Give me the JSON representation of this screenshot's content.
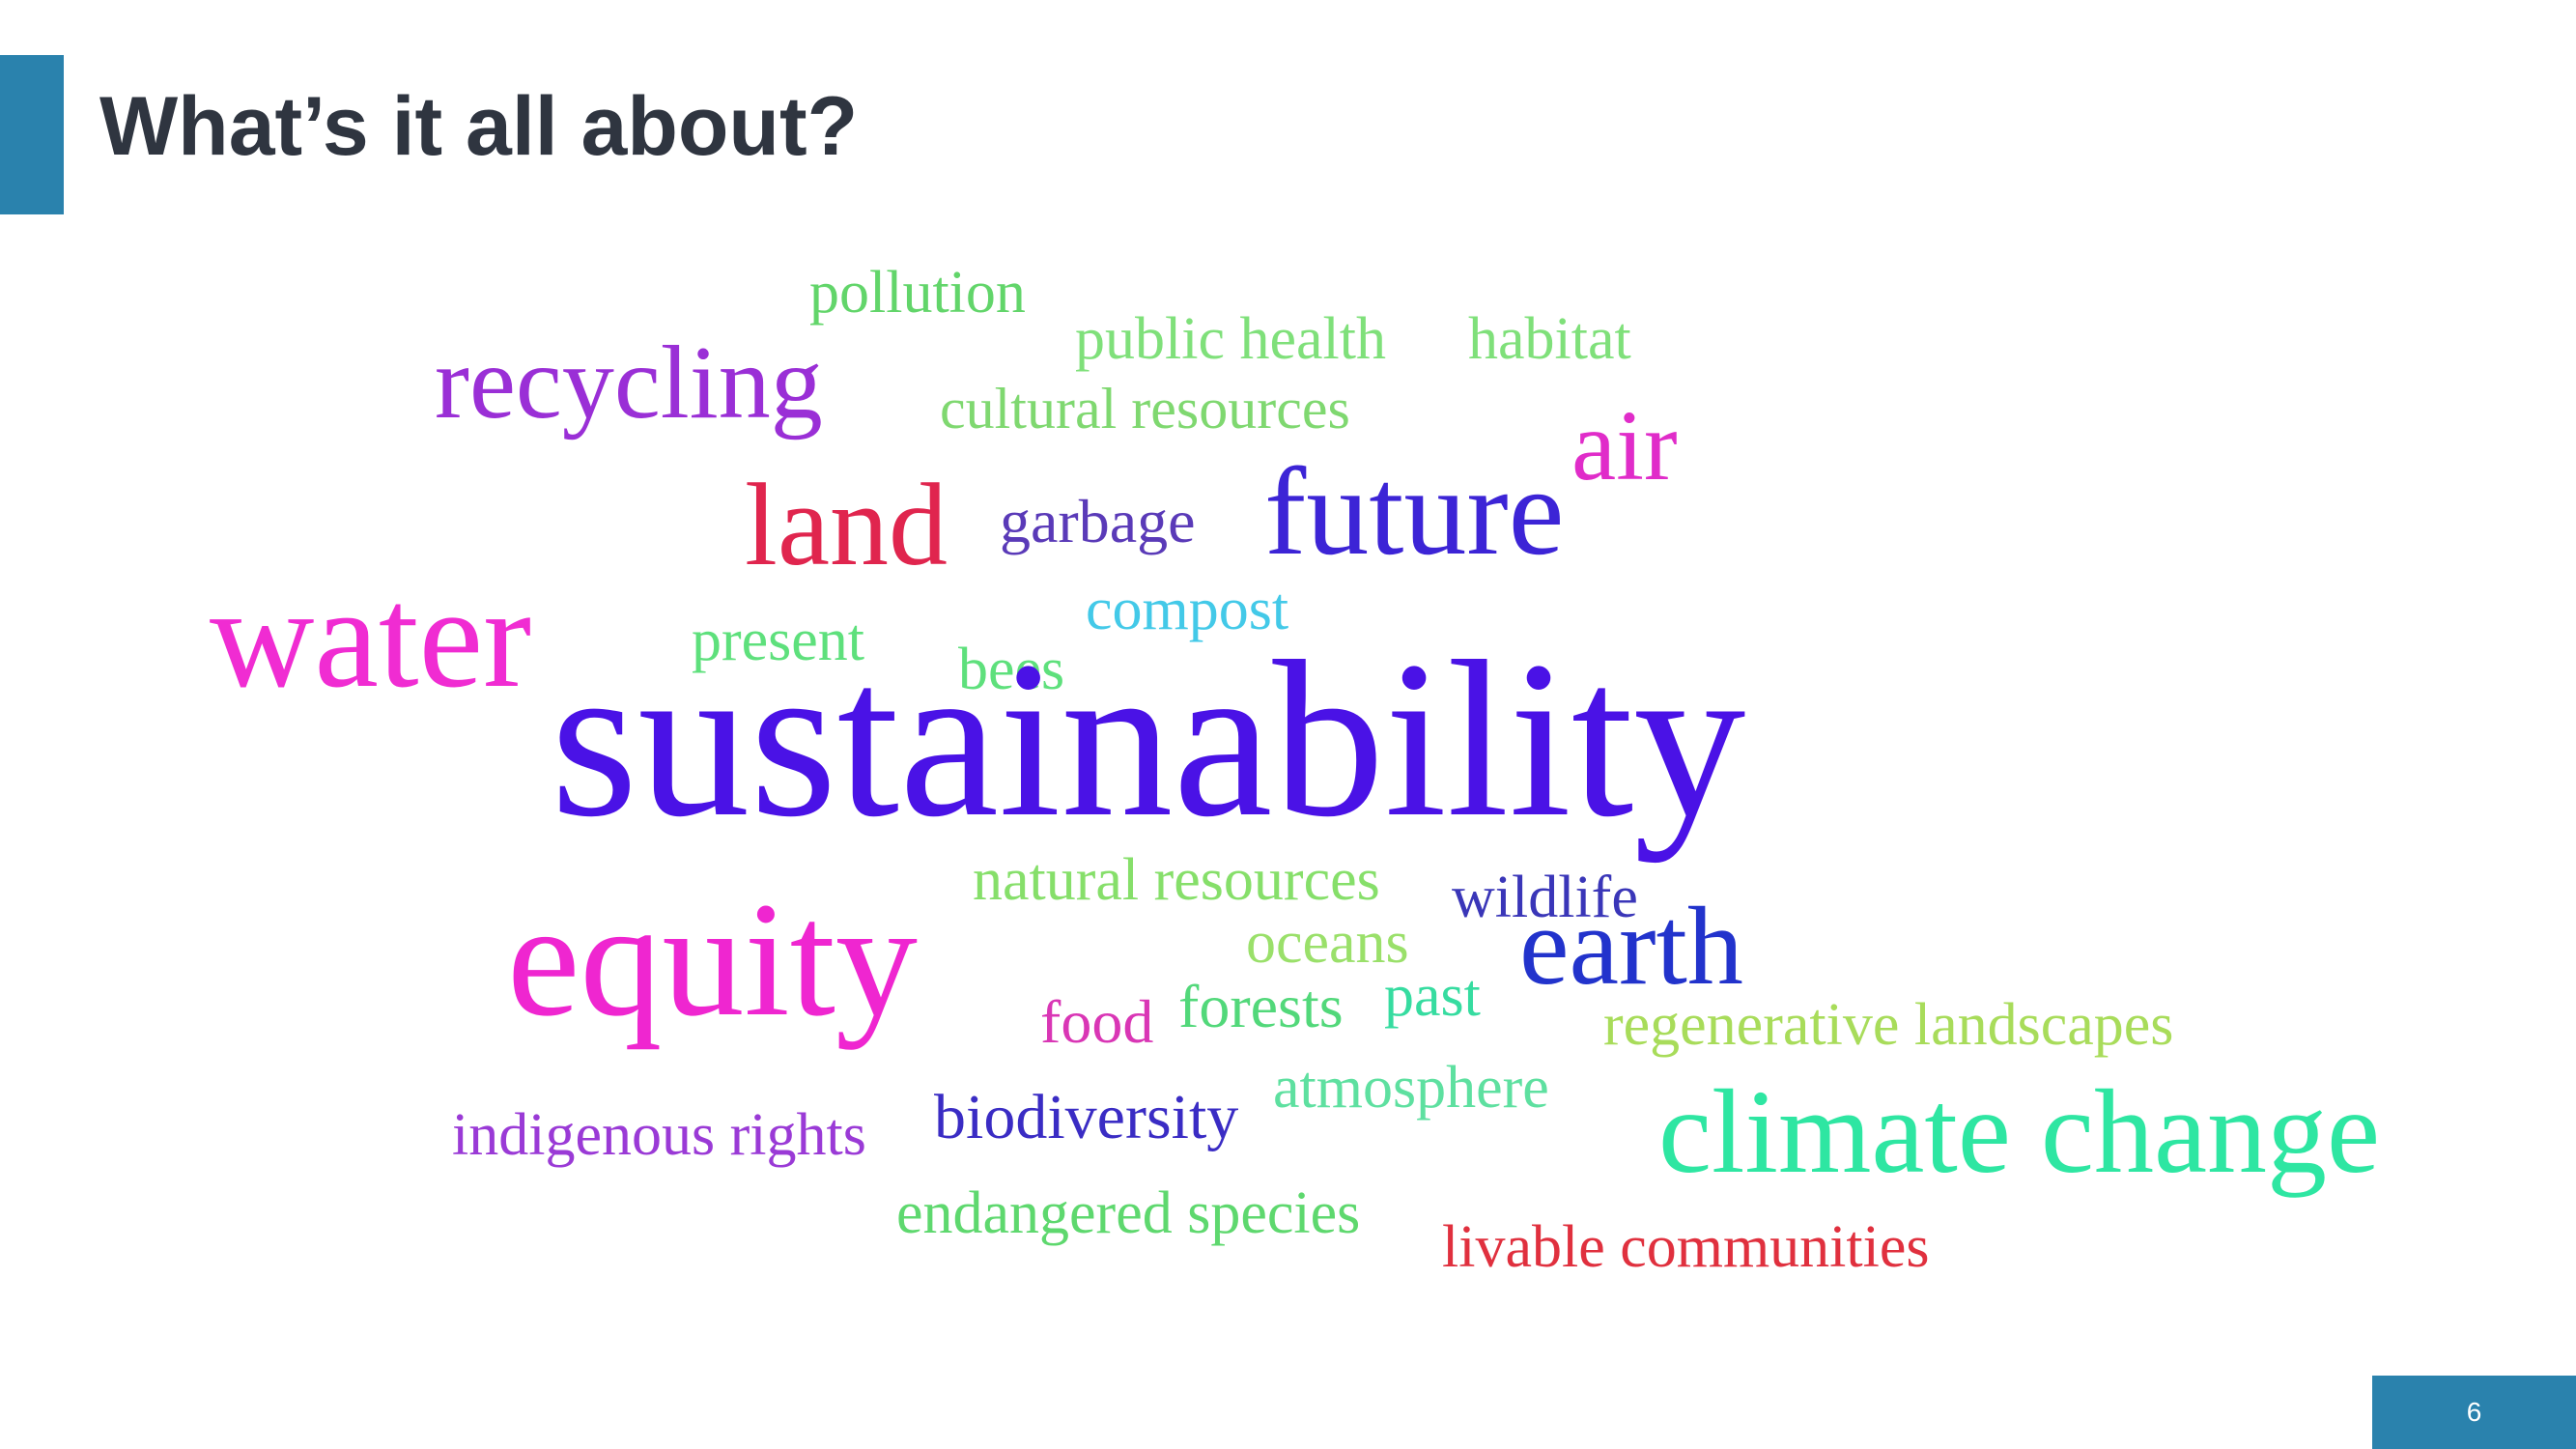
{
  "slide": {
    "title": "What’s it all about?",
    "page_number": "6"
  },
  "colors": {
    "accent": "#2a82ad",
    "title_text": "#2f3540"
  },
  "word_cloud": {
    "words": [
      {
        "text": "pollution",
        "color": "#62d56a"
      },
      {
        "text": "public health",
        "color": "#7fe07a"
      },
      {
        "text": "habitat",
        "color": "#7fe07a"
      },
      {
        "text": "recycling",
        "color": "#9a2fd6"
      },
      {
        "text": "cultural resources",
        "color": "#7fd870"
      },
      {
        "text": "air",
        "color": "#e02cc9"
      },
      {
        "text": "land",
        "color": "#e0254e"
      },
      {
        "text": "garbage",
        "color": "#5a3ab8"
      },
      {
        "text": "future",
        "color": "#3c24d6"
      },
      {
        "text": "water",
        "color": "#f02cd2"
      },
      {
        "text": "present",
        "color": "#5ee07c"
      },
      {
        "text": "compost",
        "color": "#43c9e8"
      },
      {
        "text": "bees",
        "color": "#5ee07c"
      },
      {
        "text": "sustainability",
        "color": "#4a12e6"
      },
      {
        "text": "natural resources",
        "color": "#86df6a"
      },
      {
        "text": "wildlife",
        "color": "#3a36b8"
      },
      {
        "text": "equity",
        "color": "#ef26d0"
      },
      {
        "text": "oceans",
        "color": "#9ae06a"
      },
      {
        "text": "earth",
        "color": "#2233cc"
      },
      {
        "text": "food",
        "color": "#d936b5"
      },
      {
        "text": "forests",
        "color": "#52d87a"
      },
      {
        "text": "past",
        "color": "#36dca0"
      },
      {
        "text": "regenerative landscapes",
        "color": "#a8dc5a"
      },
      {
        "text": "indigenous rights",
        "color": "#9a3ad6"
      },
      {
        "text": "biodiversity",
        "color": "#3a2cc4"
      },
      {
        "text": "atmosphere",
        "color": "#5ee0a0"
      },
      {
        "text": "climate change",
        "color": "#2ee6a2"
      },
      {
        "text": "endangered species",
        "color": "#5ed86e"
      },
      {
        "text": "livable communities",
        "color": "#e0303e"
      }
    ]
  }
}
